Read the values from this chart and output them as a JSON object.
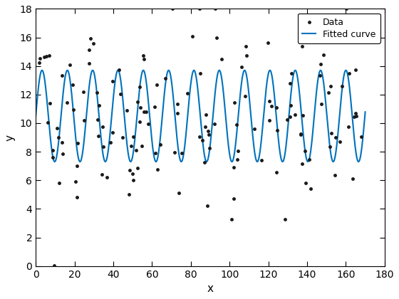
{
  "title": "",
  "xlabel": "x",
  "ylabel": "y",
  "xlim": [
    0,
    180
  ],
  "ylim": [
    0,
    18
  ],
  "xticks": [
    0,
    20,
    40,
    60,
    80,
    100,
    120,
    140,
    160,
    180
  ],
  "yticks": [
    0,
    2,
    4,
    6,
    8,
    10,
    12,
    14,
    16,
    18
  ],
  "curve_amplitude": 3.2,
  "curve_midline": 10.5,
  "curve_frequency": 0.481,
  "curve_phase": 0.0,
  "curve_color": "#0072BD",
  "scatter_color": "#1a1a1a",
  "scatter_marker": ".",
  "scatter_size": 20,
  "legend_labels": [
    "Data",
    "Fitted curve"
  ],
  "seed": 42,
  "n_points": 150,
  "noise_std": 2.5,
  "figsize": [
    5.6,
    4.2
  ],
  "dpi": 100
}
